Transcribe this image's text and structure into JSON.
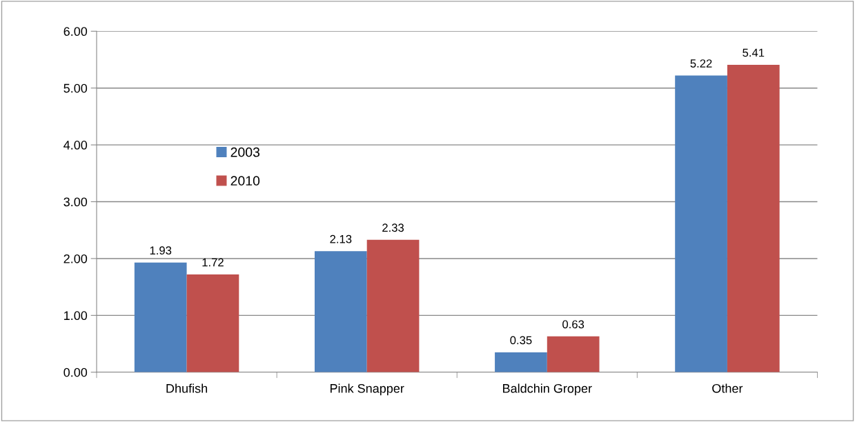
{
  "chart_data": {
    "type": "bar",
    "categories": [
      "Dhufish",
      "Pink Snapper",
      "Baldchin Groper",
      "Other"
    ],
    "series": [
      {
        "name": "2003",
        "color": "#4f81bd",
        "values": [
          1.93,
          2.13,
          0.35,
          5.22
        ]
      },
      {
        "name": "2010",
        "color": "#c0504d",
        "values": [
          1.72,
          2.33,
          0.63,
          5.41
        ]
      }
    ],
    "ylim": [
      0,
      6
    ],
    "yticks": [
      {
        "value": 0,
        "label": "0.00"
      },
      {
        "value": 1,
        "label": "1.00"
      },
      {
        "value": 2,
        "label": "2.00"
      },
      {
        "value": 3,
        "label": "3.00"
      },
      {
        "value": 4,
        "label": "4.00"
      },
      {
        "value": 5,
        "label": "5.00"
      },
      {
        "value": 6,
        "label": "6.00"
      }
    ],
    "grid": "y",
    "legend": "center left",
    "data_labels": true
  }
}
